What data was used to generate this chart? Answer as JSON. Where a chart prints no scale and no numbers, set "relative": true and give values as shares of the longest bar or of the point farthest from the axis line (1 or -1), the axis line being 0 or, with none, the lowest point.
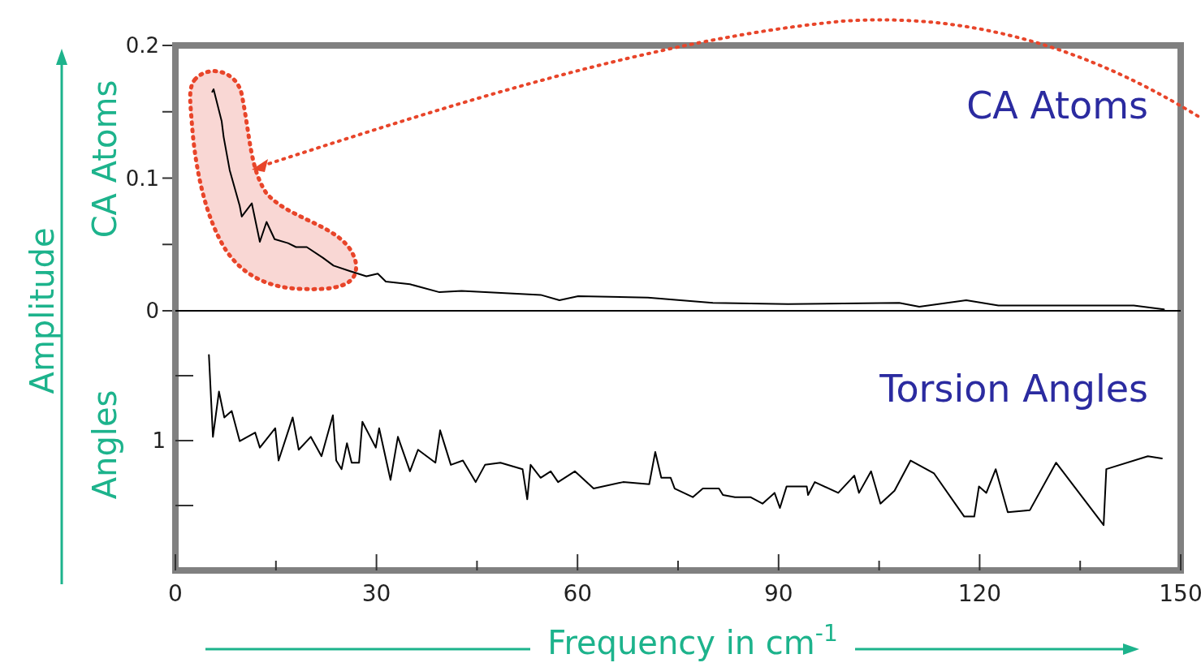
{
  "chart_data": [
    {
      "type": "line",
      "title": "CA Atoms",
      "ylabel": "CA Atoms",
      "annotations": [
        "Amplitude"
      ],
      "color": "#000000",
      "tick_labels": "y",
      "xlim": [
        0,
        150
      ],
      "ylim": [
        0,
        0.2
      ],
      "yticks": [
        0,
        {
          "value": 0.05,
          "label": null
        },
        0.1,
        {
          "value": 0.15,
          "label": null
        },
        0.2
      ],
      "x": [
        5.5,
        5.7,
        6.9,
        7.2,
        8.1,
        9.6,
        9.9,
        11.4,
        12.6,
        13.6,
        14.8,
        16.8,
        18,
        19.6,
        22,
        23.6,
        26,
        28.5,
        30.2,
        31.4,
        35,
        39.4,
        42.7,
        54.5,
        57.3,
        60.1,
        70.5,
        80.2,
        91.4,
        108,
        111,
        118,
        122.8,
        143,
        147.5
      ],
      "values": [
        0.165,
        0.167,
        0.143,
        0.131,
        0.106,
        0.079,
        0.071,
        0.081,
        0.052,
        0.067,
        0.054,
        0.051,
        0.048,
        0.048,
        0.04,
        0.034,
        0.03,
        0.026,
        0.028,
        0.022,
        0.02,
        0.014,
        0.015,
        0.012,
        0.008,
        0.011,
        0.01,
        0.006,
        0.005,
        0.006,
        0.003,
        0.008,
        0.004,
        0.004,
        0.001
      ]
    },
    {
      "type": "line",
      "title": "Torsion Angles",
      "ylabel": "Angles",
      "xlabel": "Frequency in cm$^{-1}$",
      "color": "#000000",
      "relative": true,
      "annotations": [
        "1"
      ],
      "xlim": [
        0,
        150
      ],
      "xticks": [
        0,
        {
          "value": 15,
          "label": null
        },
        30,
        {
          "value": 45,
          "label": null
        },
        60,
        {
          "value": 75,
          "label": null
        },
        90,
        {
          "value": 105,
          "label": null
        },
        120,
        {
          "value": 135,
          "label": null
        },
        150
      ],
      "x": [
        5,
        5.6,
        6.5,
        7.3,
        8.4,
        9.6,
        11.9,
        12.6,
        14.9,
        15.4,
        17.5,
        18.4,
        20.2,
        21.8,
        23.5,
        24,
        24.8,
        25.6,
        26.3,
        27.4,
        27.9,
        29.9,
        30.4,
        32.1,
        33.2,
        35,
        36.2,
        38.8,
        39.5,
        41.1,
        42.9,
        44.8,
        46.2,
        48.5,
        51.8,
        52.5,
        53,
        54.5,
        56,
        57.1,
        59.6,
        62.4,
        66.8,
        70.7,
        71.6,
        72.5,
        73.9,
        74.5,
        77.2,
        78.7,
        81.1,
        81.7,
        83.5,
        85.8,
        87.6,
        89.4,
        90.2,
        91.2,
        94.2,
        94.4,
        95.4,
        98.9,
        101.3,
        102,
        103.8,
        105.2,
        107.3,
        109.7,
        113.2,
        117.7,
        119.2,
        119.9,
        121,
        122.4,
        124.2,
        127.5,
        131.4,
        138.5,
        138.9,
        145.1,
        147.2
      ],
      "values": [
        1,
        0.62,
        0.83,
        0.71,
        0.74,
        0.6,
        0.64,
        0.57,
        0.66,
        0.51,
        0.71,
        0.56,
        0.62,
        0.53,
        0.72,
        0.51,
        0.47,
        0.59,
        0.5,
        0.5,
        0.69,
        0.57,
        0.66,
        0.42,
        0.62,
        0.46,
        0.56,
        0.5,
        0.65,
        0.49,
        0.51,
        0.41,
        0.49,
        0.5,
        0.47,
        0.33,
        0.49,
        0.43,
        0.46,
        0.41,
        0.46,
        0.38,
        0.41,
        0.4,
        0.55,
        0.43,
        0.43,
        0.38,
        0.34,
        0.38,
        0.38,
        0.35,
        0.34,
        0.34,
        0.31,
        0.36,
        0.29,
        0.39,
        0.39,
        0.35,
        0.41,
        0.36,
        0.44,
        0.36,
        0.46,
        0.31,
        0.37,
        0.51,
        0.45,
        0.25,
        0.25,
        0.39,
        0.36,
        0.47,
        0.27,
        0.28,
        0.5,
        0.21,
        0.47,
        0.53,
        0.52
      ]
    }
  ]
}
